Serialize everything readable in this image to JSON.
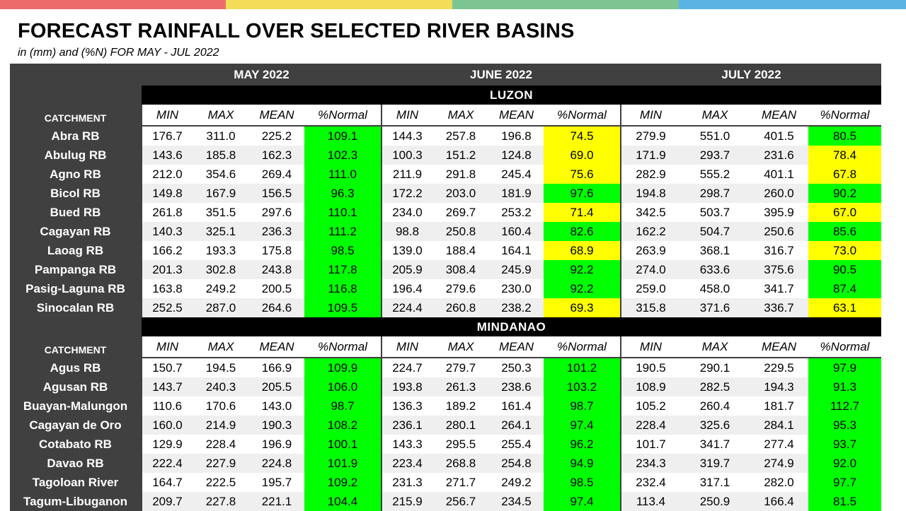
{
  "title": "FORECAST RAINFALL OVER SELECTED RIVER BASINS",
  "subtitle": "in (mm) and (%N) FOR  MAY - JUL 2022",
  "stripe_colors": [
    "#ee6b6b",
    "#f2dc58",
    "#7cc491",
    "#5bb3e3"
  ],
  "cell_colors": {
    "green": "#00ff00",
    "yellow": "#ffff00"
  },
  "months": [
    "MAY 2022",
    "JUNE 2022",
    "JULY 2022"
  ],
  "catchment_label": "CATCHMENT",
  "subheaders": [
    "MIN",
    "MAX",
    "MEAN",
    "%Normal"
  ],
  "regions": [
    {
      "name": "LUZON",
      "rows": [
        {
          "name": "Abra RB",
          "values": [
            "176.7",
            "311.0",
            "225.2",
            "109.1",
            "144.3",
            "257.8",
            "196.8",
            "74.5",
            "279.9",
            "551.0",
            "401.5",
            "80.5"
          ],
          "colors": [
            "green",
            "yellow",
            "green"
          ]
        },
        {
          "name": "Abulug RB",
          "values": [
            "143.6",
            "185.8",
            "162.3",
            "102.3",
            "100.3",
            "151.2",
            "124.8",
            "69.0",
            "171.9",
            "293.7",
            "231.6",
            "78.4"
          ],
          "colors": [
            "green",
            "yellow",
            "yellow"
          ]
        },
        {
          "name": "Agno RB",
          "values": [
            "212.0",
            "354.6",
            "269.4",
            "111.0",
            "211.9",
            "291.8",
            "245.4",
            "75.6",
            "282.9",
            "555.2",
            "401.1",
            "67.8"
          ],
          "colors": [
            "green",
            "yellow",
            "yellow"
          ]
        },
        {
          "name": "Bicol RB",
          "values": [
            "149.8",
            "167.9",
            "156.5",
            "96.3",
            "172.2",
            "203.0",
            "181.9",
            "97.6",
            "194.8",
            "298.7",
            "260.0",
            "90.2"
          ],
          "colors": [
            "green",
            "green",
            "green"
          ]
        },
        {
          "name": "Bued RB",
          "values": [
            "261.8",
            "351.5",
            "297.6",
            "110.1",
            "234.0",
            "269.7",
            "253.2",
            "71.4",
            "342.5",
            "503.7",
            "395.9",
            "67.0"
          ],
          "colors": [
            "green",
            "yellow",
            "yellow"
          ]
        },
        {
          "name": "Cagayan RB",
          "values": [
            "140.3",
            "325.1",
            "236.3",
            "111.2",
            "98.8",
            "250.8",
            "160.4",
            "82.6",
            "162.2",
            "504.7",
            "250.6",
            "85.6"
          ],
          "colors": [
            "green",
            "green",
            "green"
          ]
        },
        {
          "name": "Laoag RB",
          "values": [
            "166.2",
            "193.3",
            "175.8",
            "98.5",
            "139.0",
            "188.4",
            "164.1",
            "68.9",
            "263.9",
            "368.1",
            "316.7",
            "73.0"
          ],
          "colors": [
            "green",
            "yellow",
            "yellow"
          ]
        },
        {
          "name": "Pampanga RB",
          "values": [
            "201.3",
            "302.8",
            "243.8",
            "117.8",
            "205.9",
            "308.4",
            "245.9",
            "92.2",
            "274.0",
            "633.6",
            "375.6",
            "90.5"
          ],
          "colors": [
            "green",
            "green",
            "green"
          ]
        },
        {
          "name": "Pasig-Laguna RB",
          "values": [
            "163.8",
            "249.2",
            "200.5",
            "116.8",
            "196.4",
            "279.6",
            "230.0",
            "92.2",
            "259.0",
            "458.0",
            "341.7",
            "87.4"
          ],
          "colors": [
            "green",
            "green",
            "green"
          ]
        },
        {
          "name": "Sinocalan RB",
          "values": [
            "252.5",
            "287.0",
            "264.6",
            "109.5",
            "224.4",
            "260.8",
            "238.2",
            "69.3",
            "315.8",
            "371.6",
            "336.7",
            "63.1"
          ],
          "colors": [
            "green",
            "yellow",
            "yellow"
          ]
        }
      ]
    },
    {
      "name": "MINDANAO",
      "rows": [
        {
          "name": "Agus RB",
          "values": [
            "150.7",
            "194.5",
            "166.9",
            "109.9",
            "224.7",
            "279.7",
            "250.3",
            "101.2",
            "190.5",
            "290.1",
            "229.5",
            "97.9"
          ],
          "colors": [
            "green",
            "green",
            "green"
          ]
        },
        {
          "name": "Agusan RB",
          "values": [
            "143.7",
            "240.3",
            "205.5",
            "106.0",
            "193.8",
            "261.3",
            "238.6",
            "103.2",
            "108.9",
            "282.5",
            "194.3",
            "91.3"
          ],
          "colors": [
            "green",
            "green",
            "green"
          ]
        },
        {
          "name": "Buayan-Malungon",
          "values": [
            "110.6",
            "170.6",
            "143.0",
            "98.7",
            "136.3",
            "189.2",
            "161.4",
            "98.7",
            "105.2",
            "260.4",
            "181.7",
            "112.7"
          ],
          "colors": [
            "green",
            "green",
            "green"
          ]
        },
        {
          "name": "Cagayan de Oro",
          "values": [
            "160.0",
            "214.9",
            "190.3",
            "108.2",
            "236.1",
            "280.1",
            "264.1",
            "97.4",
            "228.4",
            "325.6",
            "284.1",
            "95.3"
          ],
          "colors": [
            "green",
            "green",
            "green"
          ]
        },
        {
          "name": "Cotabato RB",
          "values": [
            "129.9",
            "228.4",
            "196.9",
            "100.1",
            "143.3",
            "295.5",
            "255.4",
            "96.2",
            "101.7",
            "341.7",
            "277.4",
            "93.7"
          ],
          "colors": [
            "green",
            "green",
            "green"
          ]
        },
        {
          "name": "Davao RB",
          "values": [
            "222.4",
            "227.9",
            "224.8",
            "101.9",
            "223.4",
            "268.8",
            "254.8",
            "94.9",
            "234.3",
            "319.7",
            "274.9",
            "92.0"
          ],
          "colors": [
            "green",
            "green",
            "green"
          ]
        },
        {
          "name": "Tagoloan River",
          "values": [
            "164.7",
            "222.5",
            "195.7",
            "109.2",
            "231.3",
            "271.7",
            "249.2",
            "98.5",
            "232.4",
            "317.1",
            "282.0",
            "97.7"
          ],
          "colors": [
            "green",
            "green",
            "green"
          ]
        },
        {
          "name": "Tagum-Libuganon",
          "values": [
            "209.7",
            "227.8",
            "221.1",
            "104.4",
            "215.9",
            "256.7",
            "234.5",
            "97.4",
            "113.4",
            "250.9",
            "166.4",
            "81.5"
          ],
          "colors": [
            "green",
            "green",
            "green"
          ]
        }
      ]
    }
  ]
}
